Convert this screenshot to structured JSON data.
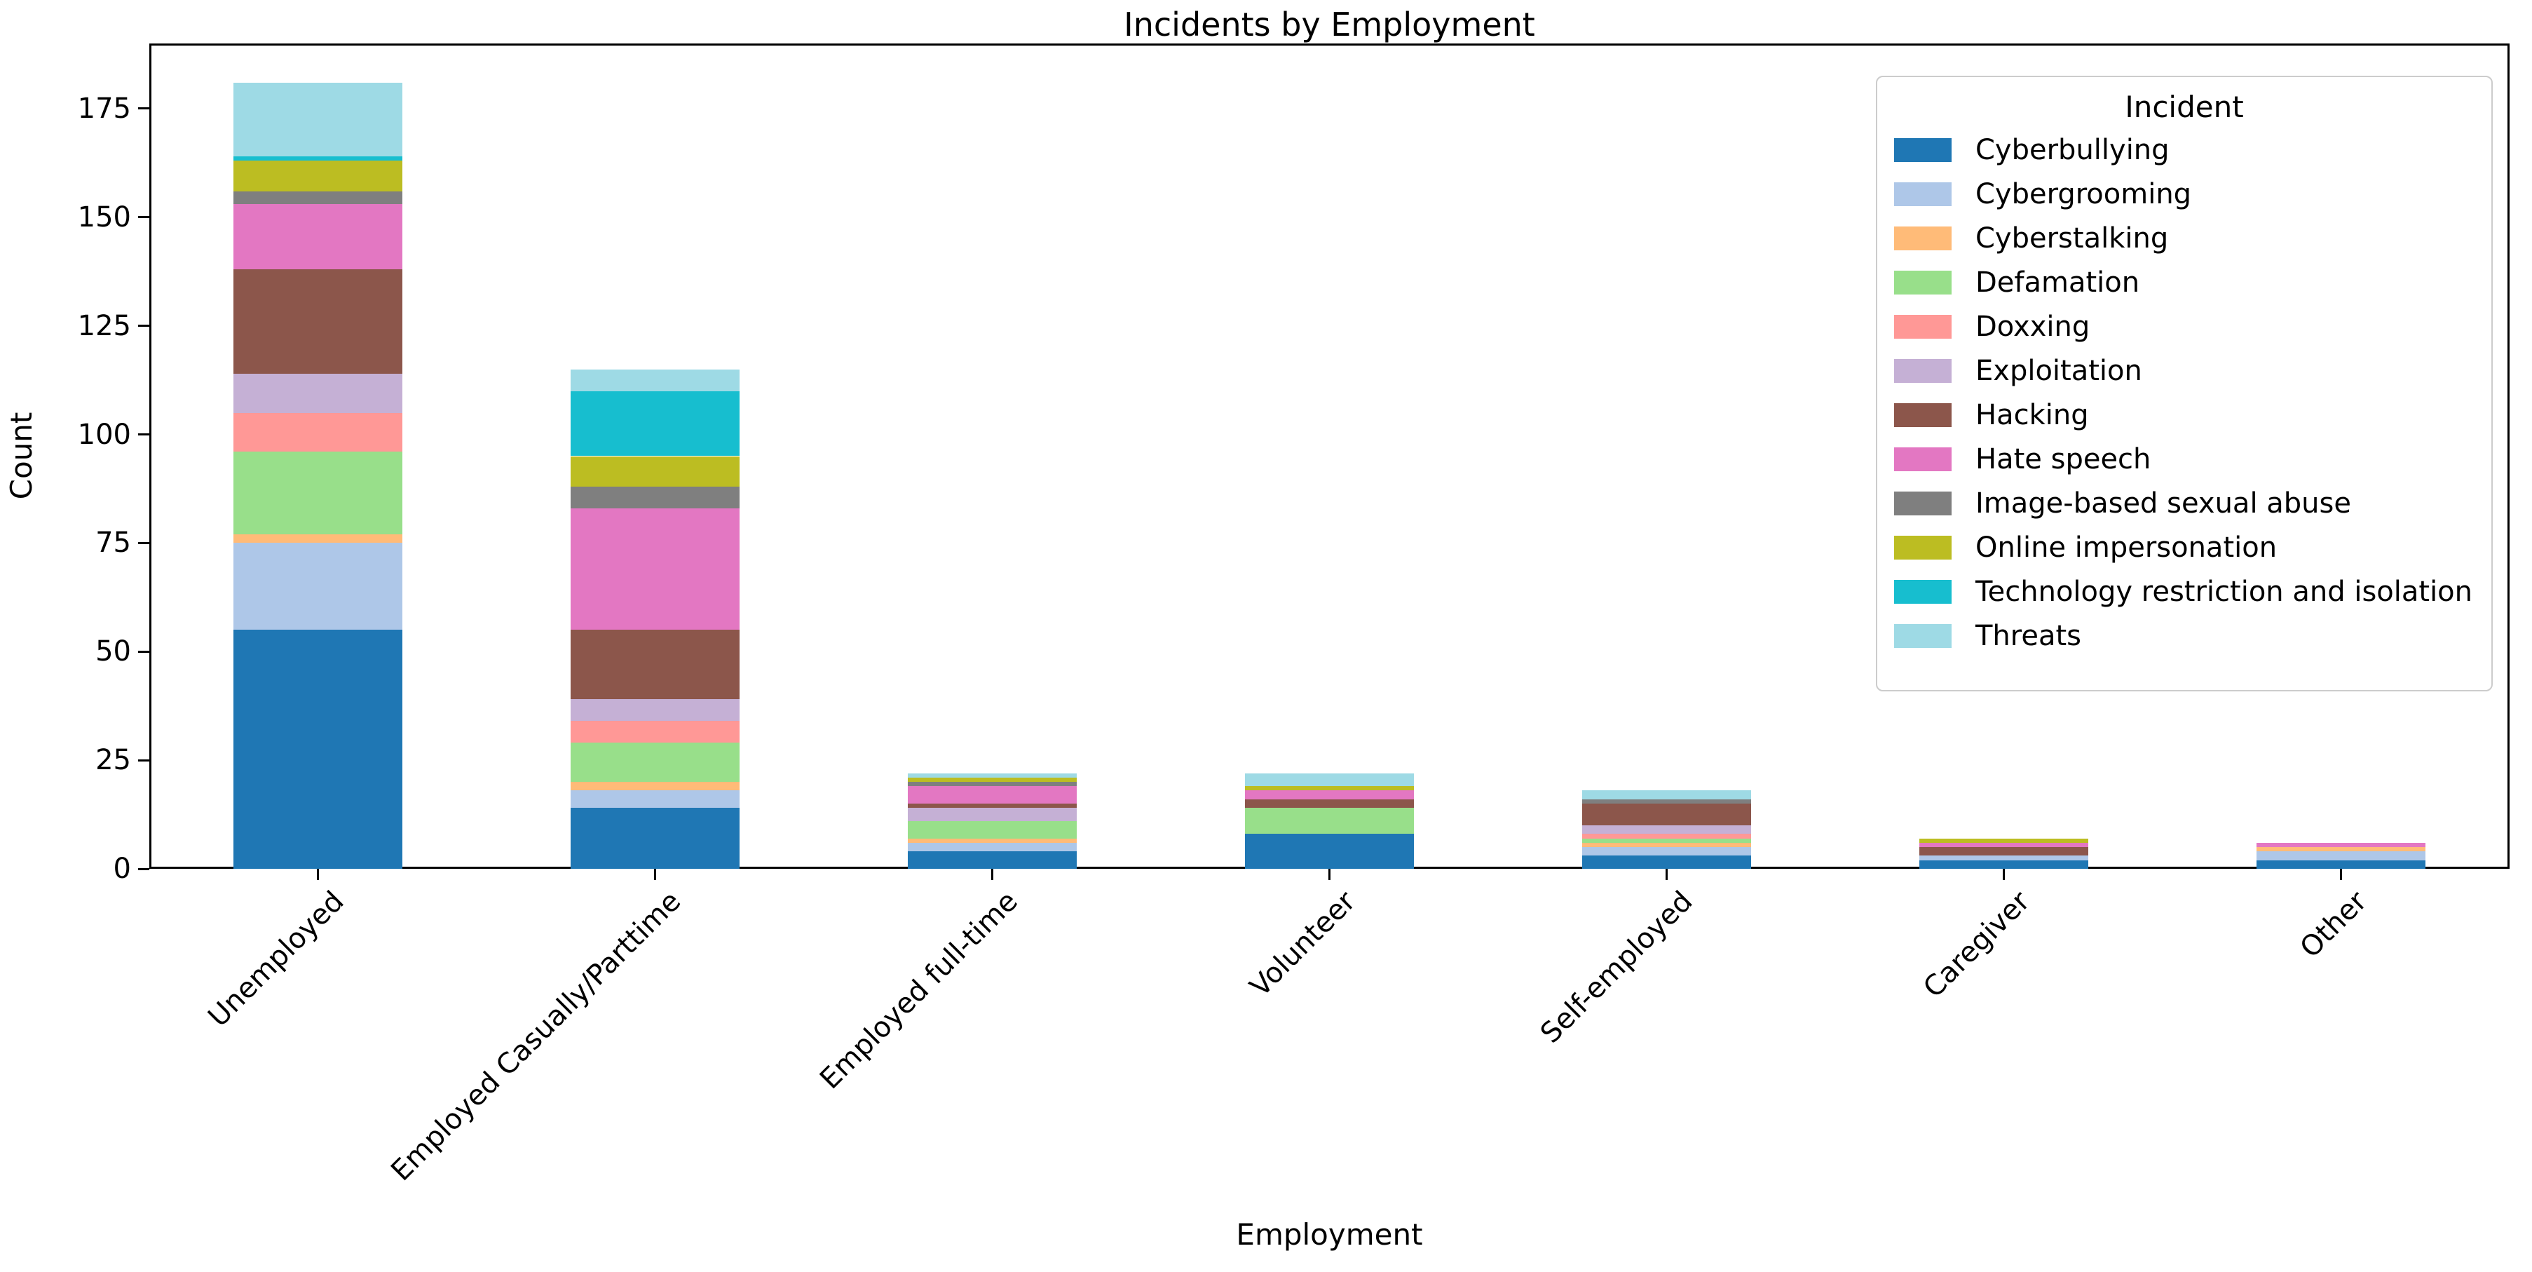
{
  "title": "Incidents by Employment",
  "x_axis_title": "Employment",
  "y_axis_title": "Count",
  "legend": {
    "title": "Incident",
    "position": "upper right"
  },
  "y_ticks": [
    0,
    25,
    50,
    75,
    100,
    125,
    150,
    175
  ],
  "chart_data": {
    "type": "bar",
    "stacked": true,
    "title": "Incidents by Employment",
    "xlabel": "Employment",
    "ylabel": "Count",
    "ylim": [
      0,
      190
    ],
    "grid": false,
    "legend_title": "Incident",
    "legend_position": "upper right",
    "categories": [
      "Unemployed",
      "Employed Casually/Parttime",
      "Employed full-time",
      "Volunteer",
      "Self-employed",
      "Caregiver",
      "Other"
    ],
    "series": [
      {
        "name": "Cyberbullying",
        "color": "#1f77b4",
        "values": [
          55,
          14,
          4,
          8,
          3,
          2,
          2
        ]
      },
      {
        "name": "Cybergrooming",
        "color": "#aec7e8",
        "values": [
          20,
          4,
          2,
          0,
          2,
          1,
          2
        ]
      },
      {
        "name": "Cyberstalking",
        "color": "#ffbb78",
        "values": [
          2,
          2,
          1,
          0,
          1,
          0,
          1
        ]
      },
      {
        "name": "Defamation",
        "color": "#98df8a",
        "values": [
          19,
          9,
          4,
          6,
          1,
          0,
          0
        ]
      },
      {
        "name": "Doxxing",
        "color": "#ff9896",
        "values": [
          9,
          5,
          0,
          0,
          1,
          0,
          0
        ]
      },
      {
        "name": "Exploitation",
        "color": "#c5b0d5",
        "values": [
          9,
          5,
          3,
          0,
          2,
          0,
          0
        ]
      },
      {
        "name": "Hacking",
        "color": "#8c564b",
        "values": [
          24,
          16,
          1,
          2,
          5,
          2,
          0
        ]
      },
      {
        "name": "Hate speech",
        "color": "#e377c2",
        "values": [
          15,
          28,
          4,
          2,
          0,
          1,
          1
        ]
      },
      {
        "name": "Image-based sexual abuse",
        "color": "#7f7f7f",
        "values": [
          3,
          5,
          1,
          0,
          1,
          0,
          0
        ]
      },
      {
        "name": "Online impersonation",
        "color": "#bcbd22",
        "values": [
          7,
          7,
          1,
          1,
          0,
          1,
          0
        ]
      },
      {
        "name": "Technology restriction and isolation",
        "color": "#17becf",
        "values": [
          1,
          15,
          0,
          0,
          0,
          0,
          0
        ]
      },
      {
        "name": "Threats",
        "color": "#9edae5",
        "values": [
          17,
          5,
          1,
          3,
          2,
          0,
          0
        ]
      }
    ],
    "totals": [
      181,
      115,
      22,
      22,
      18,
      7,
      6
    ]
  }
}
